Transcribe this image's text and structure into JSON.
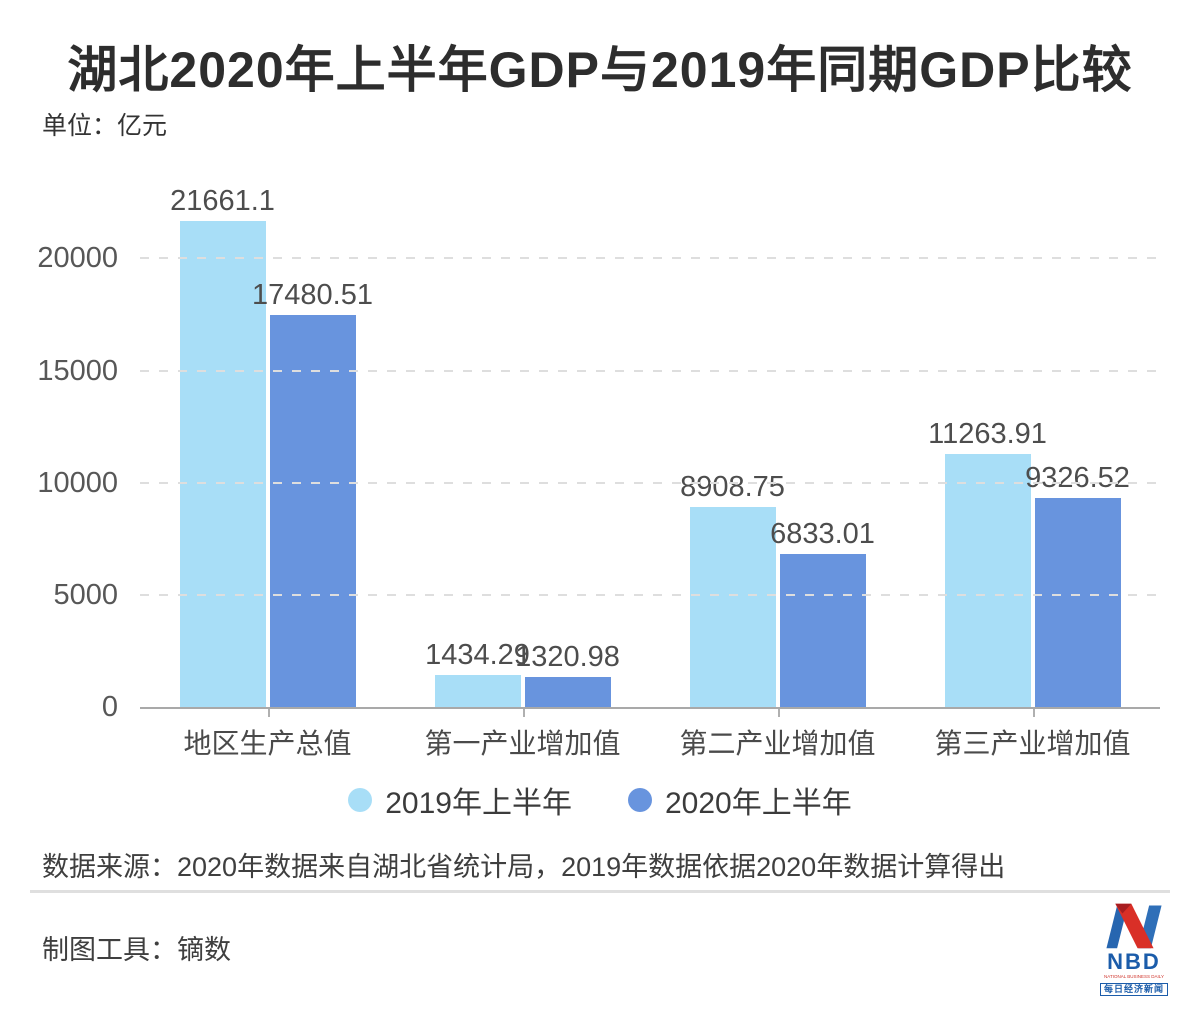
{
  "header": {
    "title": "湖北2020年上半年GDP与2019年同期GDP比较",
    "unit_label": "单位：亿元"
  },
  "chart_data": {
    "type": "bar",
    "categories": [
      "地区生产总值",
      "第一产业增加值",
      "第二产业增加值",
      "第三产业增加值"
    ],
    "series": [
      {
        "name": "2019年上半年",
        "color": "#a8def7",
        "values": [
          21661.1,
          1434.29,
          8908.75,
          11263.91
        ]
      },
      {
        "name": "2020年上半年",
        "color": "#6894de",
        "values": [
          17480.51,
          1320.98,
          6833.01,
          9326.52
        ]
      }
    ],
    "title": "湖北2020年上半年GDP与2019年同期GDP比较",
    "xlabel": "",
    "ylabel": "亿元",
    "ylim": [
      0,
      22600
    ],
    "yticks": [
      0,
      5000,
      10000,
      15000,
      20000
    ],
    "grid": "dashed-horizontal",
    "legend_position": "bottom",
    "value_labels_shown": true
  },
  "footer": {
    "source": "数据来源：2020年数据来自湖北省统计局，2019年数据依据2020年数据计算得出",
    "tool": "制图工具：镝数",
    "logo": {
      "text": "NBD",
      "subtext": "NATIONAL BUSINESS DAILY",
      "cn_text": "每日经济新闻",
      "blue": "#1b5caa",
      "red": "#d92f27"
    }
  }
}
